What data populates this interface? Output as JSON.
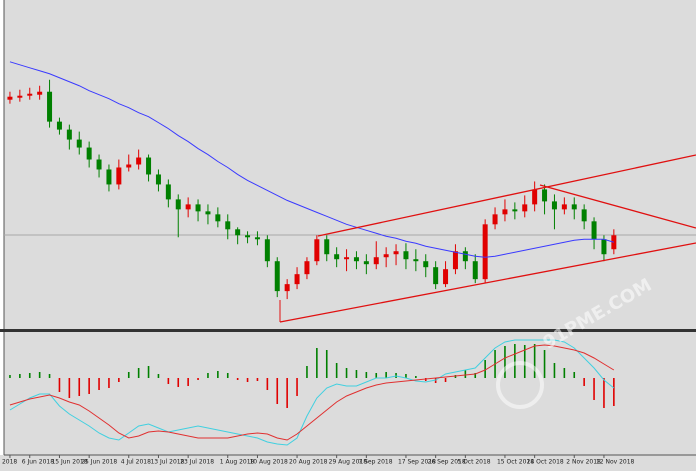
{
  "watermark": "91PME.COM",
  "chart_data": [
    {
      "type": "candlestick",
      "categories": [
        "2018",
        null,
        "6 Jun 2018",
        null,
        null,
        "15 Jun 2018",
        null,
        null,
        "25 Jun 2018",
        null,
        null,
        null,
        "4 Jul 2018",
        null,
        null,
        "13 Jul 2018",
        null,
        null,
        "23 Jul 2018",
        null,
        null,
        null,
        "1 Aug 2018",
        null,
        null,
        "10 Aug 2018",
        null,
        null,
        null,
        "20 Aug 2018",
        null,
        null,
        null,
        "29 Aug 2018",
        null,
        null,
        "7 Sep 2018",
        null,
        null,
        null,
        "17 Sep 2018",
        null,
        null,
        "26 Sep 2018",
        null,
        null,
        "5 Oct 2018",
        null,
        null,
        null,
        "15 Oct 2018",
        null,
        null,
        "24 Oct 2018",
        null,
        null,
        null,
        "2 Nov 2018",
        null,
        null,
        "12 Nov 2018",
        null
      ],
      "open": [
        230,
        232,
        234,
        235,
        238,
        208,
        200,
        190,
        182,
        170,
        160,
        145,
        162,
        165,
        172,
        155,
        145,
        130,
        120,
        125,
        118,
        115,
        108,
        100,
        94,
        92,
        90,
        68,
        38,
        45,
        55,
        68,
        90,
        75,
        70,
        72,
        68,
        65,
        72,
        75,
        78,
        70,
        68,
        62,
        45,
        60,
        78,
        68,
        50,
        105,
        115,
        120,
        118,
        125,
        140,
        128,
        120,
        125,
        120,
        108,
        90,
        80
      ],
      "high": [
        238,
        240,
        242,
        244,
        250,
        212,
        205,
        198,
        188,
        175,
        165,
        170,
        175,
        180,
        175,
        160,
        150,
        135,
        132,
        130,
        125,
        122,
        115,
        102,
        98,
        98,
        94,
        72,
        50,
        62,
        72,
        94,
        94,
        82,
        80,
        78,
        75,
        88,
        82,
        85,
        86,
        80,
        75,
        68,
        68,
        85,
        82,
        75,
        110,
        122,
        130,
        127,
        134,
        148,
        145,
        135,
        132,
        132,
        125,
        112,
        94,
        100
      ],
      "low": [
        226,
        228,
        230,
        230,
        202,
        195,
        180,
        175,
        162,
        152,
        138,
        140,
        158,
        160,
        148,
        138,
        122,
        92,
        112,
        108,
        105,
        102,
        90,
        85,
        86,
        84,
        62,
        32,
        30,
        40,
        50,
        64,
        68,
        62,
        58,
        60,
        55,
        60,
        62,
        64,
        60,
        58,
        52,
        40,
        42,
        55,
        60,
        46,
        46,
        100,
        108,
        110,
        112,
        118,
        115,
        100,
        115,
        110,
        100,
        80,
        68,
        75
      ],
      "close": [
        233,
        234,
        236,
        238,
        208,
        200,
        190,
        182,
        170,
        160,
        145,
        162,
        165,
        172,
        155,
        145,
        130,
        120,
        125,
        118,
        115,
        108,
        100,
        94,
        92,
        90,
        68,
        38,
        45,
        55,
        68,
        90,
        75,
        70,
        72,
        68,
        65,
        72,
        75,
        78,
        70,
        68,
        62,
        45,
        60,
        78,
        68,
        50,
        105,
        115,
        120,
        118,
        125,
        140,
        128,
        120,
        125,
        120,
        108,
        90,
        75,
        94
      ],
      "up_color": "#e00000",
      "down_color": "#008000",
      "series": [
        {
          "color": "#3a3aff",
          "values": [
            268,
            265,
            262,
            259,
            256,
            252,
            248,
            244,
            239,
            235,
            231,
            226,
            222,
            217,
            213,
            207,
            201,
            194,
            188,
            181,
            175,
            168,
            162,
            155,
            149,
            144,
            139,
            134,
            129,
            125,
            121,
            117,
            113,
            109,
            105,
            102,
            99,
            96,
            93,
            91,
            88,
            86,
            83,
            81,
            79,
            77,
            75,
            73,
            72,
            73,
            75,
            77,
            79,
            81,
            83,
            85,
            87,
            89,
            90,
            90,
            90,
            87
          ]
        }
      ],
      "ylim": [
        0,
        330
      ]
    },
    {
      "type": "macd",
      "values": [
        3,
        4,
        5,
        6,
        4,
        -14,
        -20,
        -18,
        -16,
        -12,
        -10,
        -4,
        6,
        10,
        12,
        4,
        -6,
        -9,
        -8,
        -2,
        5,
        7,
        5,
        -2,
        -4,
        -3,
        -12,
        -26,
        -30,
        -18,
        12,
        30,
        28,
        15,
        10,
        8,
        6,
        5,
        6,
        5,
        4,
        2,
        -3,
        -5,
        -4,
        3,
        8,
        5,
        18,
        28,
        32,
        34,
        33,
        34,
        28,
        15,
        10,
        6,
        -8,
        -22,
        -30,
        -28
      ],
      "up_color": "#008000",
      "down_color": "#e00000",
      "series": [
        {
          "color": "#40d0e0",
          "values": [
            -32,
            -26,
            -20,
            -16,
            -16,
            -28,
            -36,
            -42,
            -48,
            -55,
            -60,
            -62,
            -55,
            -48,
            -46,
            -50,
            -54,
            -52,
            -50,
            -48,
            -50,
            -52,
            -54,
            -56,
            -58,
            -60,
            -64,
            -66,
            -67,
            -60,
            -38,
            -20,
            -10,
            -6,
            -8,
            -8,
            -4,
            0,
            0,
            2,
            0,
            -3,
            -4,
            -2,
            4,
            6,
            8,
            10,
            20,
            30,
            36,
            38,
            38,
            38,
            38,
            38,
            36,
            30,
            20,
            10,
            -2,
            -10
          ]
        },
        {
          "color": "#e03030",
          "values": [
            -27,
            -24,
            -21,
            -19,
            -17,
            -20,
            -24,
            -27,
            -33,
            -40,
            -47,
            -55,
            -60,
            -58,
            -54,
            -53,
            -54,
            -56,
            -58,
            -60,
            -60,
            -60,
            -60,
            -58,
            -56,
            -55,
            -56,
            -60,
            -62,
            -56,
            -48,
            -40,
            -32,
            -24,
            -18,
            -14,
            -10,
            -7,
            -5,
            -4,
            -3,
            -2,
            -1,
            0,
            1,
            2,
            3,
            4,
            8,
            14,
            20,
            24,
            28,
            32,
            33,
            32,
            30,
            28,
            25,
            20,
            14,
            8
          ]
        }
      ],
      "ylim": [
        -77,
        46
      ]
    }
  ]
}
